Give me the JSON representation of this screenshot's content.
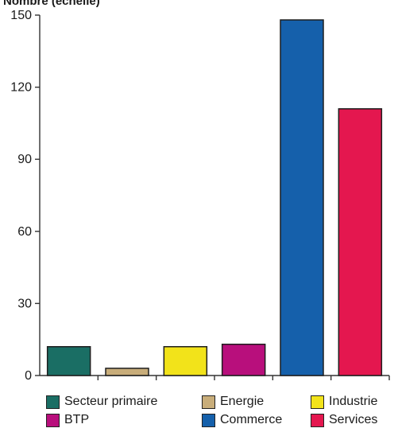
{
  "chart_data": {
    "type": "bar",
    "title": "Nombre (échelle)",
    "categories": [
      "Secteur primaire",
      "Energie",
      "Industrie",
      "BTP",
      "Commerce",
      "Services"
    ],
    "values": [
      12,
      3,
      12,
      13,
      148,
      111
    ],
    "colors": [
      "#1a6e64",
      "#c8ad7a",
      "#f2e31a",
      "#b80f7c",
      "#1560ab",
      "#e4174f"
    ],
    "ylim": [
      0,
      150
    ],
    "yticks": [
      0,
      30,
      60,
      90,
      120,
      150
    ],
    "grid": false,
    "legend_position": "bottom"
  },
  "legend": [
    {
      "label": "Secteur primaire",
      "color": "#1a6e64"
    },
    {
      "label": "Energie",
      "color": "#c8ad7a"
    },
    {
      "label": "Industrie",
      "color": "#f2e31a"
    },
    {
      "label": "BTP",
      "color": "#b80f7c"
    },
    {
      "label": "Commerce",
      "color": "#1560ab"
    },
    {
      "label": "Services",
      "color": "#e4174f"
    }
  ]
}
